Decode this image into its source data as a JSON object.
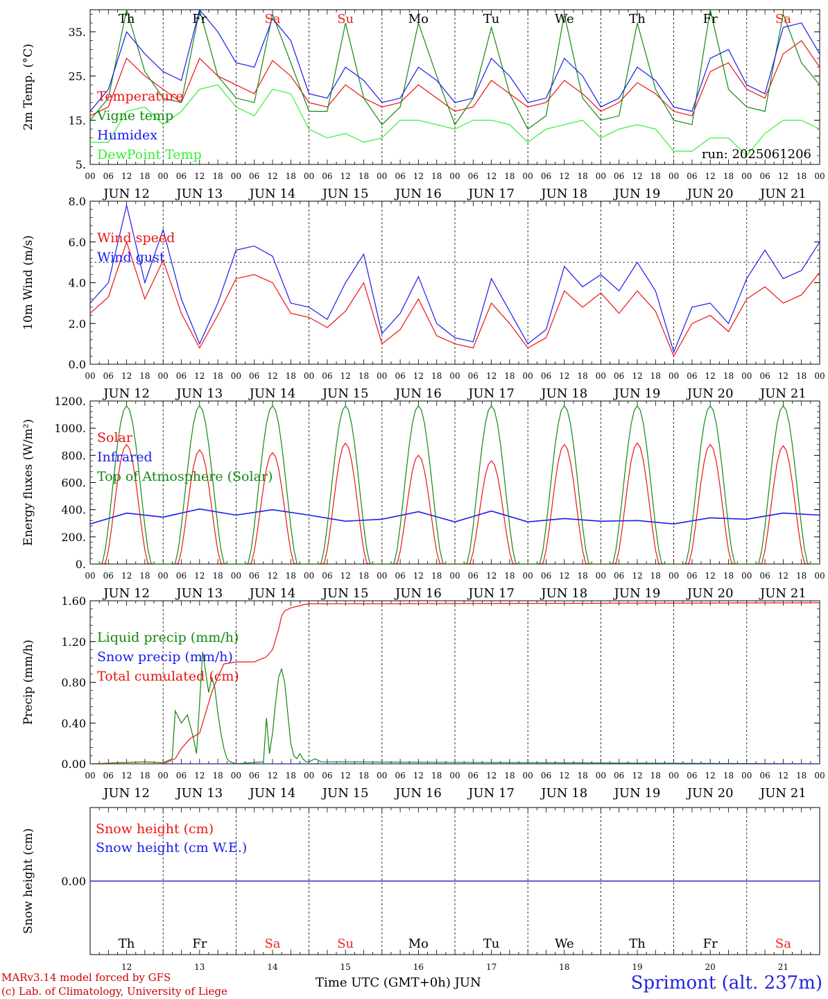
{
  "colors": {
    "red": "#ee1111",
    "green": "#118811",
    "blue": "#1a1aee",
    "lightgreen": "#33ee33",
    "weekend": "#ee2222",
    "weekday": "#000000"
  },
  "days": [
    {
      "abbr": "Th",
      "date": "JUN 12",
      "num": "12",
      "weekend": false
    },
    {
      "abbr": "Fr",
      "date": "JUN 13",
      "num": "13",
      "weekend": false
    },
    {
      "abbr": "Sa",
      "date": "JUN 14",
      "num": "14",
      "weekend": true
    },
    {
      "abbr": "Su",
      "date": "JUN 15",
      "num": "15",
      "weekend": true
    },
    {
      "abbr": "Mo",
      "date": "JUN 16",
      "num": "16",
      "weekend": false
    },
    {
      "abbr": "Tu",
      "date": "JUN 17",
      "num": "17",
      "weekend": false
    },
    {
      "abbr": "We",
      "date": "JUN 18",
      "num": "18",
      "weekend": false
    },
    {
      "abbr": "Th",
      "date": "JUN 19",
      "num": "19",
      "weekend": false
    },
    {
      "abbr": "Fr",
      "date": "JUN 20",
      "num": "20",
      "weekend": false
    },
    {
      "abbr": "Sa",
      "date": "JUN 21",
      "num": "21",
      "weekend": true
    }
  ],
  "hour_ticks": [
    "00",
    "06",
    "12",
    "18"
  ],
  "footer": {
    "model_line": "MARv3.14 model forced by GFS",
    "lab_line": "(c) Lab. of Climatology, University of Liege",
    "xlabel": "Time UTC (GMT+0h) JUN",
    "station": "Sprimont (alt. 237m)"
  },
  "chart_data": [
    {
      "type": "line",
      "ylabel": "2m Temp. (°C)",
      "ylim": [
        5,
        40
      ],
      "yticks": [
        5,
        15,
        25,
        35
      ],
      "ytick_labels": [
        "5.",
        "15.",
        "25.",
        "35."
      ],
      "run_label": "run: 2025061206",
      "xunit": "hours since JUN 12 00 UTC",
      "series": [
        {
          "name": "Temperature",
          "color": "red",
          "x": [
            0,
            6,
            12,
            18,
            24,
            30,
            36,
            42,
            48,
            54,
            60,
            66,
            72,
            78,
            84,
            90,
            96,
            102,
            108,
            114,
            120,
            126,
            132,
            138,
            144,
            150,
            156,
            162,
            168,
            174,
            180,
            186,
            192,
            198,
            204,
            210,
            216,
            222,
            228,
            234,
            240
          ],
          "values": [
            16,
            18,
            29,
            25,
            22,
            19,
            29,
            25,
            23,
            21,
            28.5,
            25,
            19,
            18,
            23,
            20,
            18,
            19,
            23,
            20,
            17,
            18,
            24,
            21,
            18,
            19,
            24,
            21,
            17,
            19,
            23.5,
            21,
            17,
            16,
            26,
            28,
            22,
            20,
            30,
            33,
            27
          ]
        },
        {
          "name": "Vigne temp",
          "color": "green",
          "x": [
            0,
            6,
            12,
            18,
            24,
            30,
            36,
            42,
            48,
            54,
            60,
            66,
            72,
            78,
            84,
            90,
            96,
            102,
            108,
            114,
            120,
            126,
            132,
            138,
            144,
            150,
            156,
            162,
            168,
            174,
            180,
            186,
            192,
            198,
            204,
            210,
            216,
            222,
            228,
            234,
            240
          ],
          "values": [
            15,
            20,
            40,
            26,
            20,
            19,
            40,
            25,
            20,
            19,
            39,
            28,
            17,
            17,
            37,
            20,
            14,
            18,
            37,
            25,
            14,
            20,
            36,
            21,
            13,
            16,
            39,
            20,
            15,
            16,
            37,
            22,
            15,
            14,
            40,
            22,
            18,
            17,
            39,
            28,
            23
          ]
        },
        {
          "name": "Humidex",
          "color": "blue",
          "x": [
            0,
            6,
            12,
            18,
            24,
            30,
            36,
            42,
            48,
            54,
            60,
            66,
            72,
            78,
            84,
            90,
            96,
            102,
            108,
            114,
            120,
            126,
            132,
            138,
            144,
            150,
            156,
            162,
            168,
            174,
            180,
            186,
            192,
            198,
            204,
            210,
            216,
            222,
            228,
            234,
            240
          ],
          "values": [
            17,
            22,
            35,
            30,
            26,
            24,
            40,
            35,
            28,
            27,
            38,
            33,
            21,
            20,
            27,
            24,
            19,
            20,
            27,
            24,
            19,
            20,
            29,
            25,
            19,
            20,
            29,
            25,
            18,
            20,
            27,
            24,
            18,
            17,
            29,
            31,
            23,
            21,
            36,
            37,
            30
          ]
        },
        {
          "name": "DewPoint Temp",
          "color": "lightgreen",
          "x": [
            0,
            6,
            12,
            18,
            24,
            30,
            36,
            42,
            48,
            54,
            60,
            66,
            72,
            78,
            84,
            90,
            96,
            102,
            108,
            114,
            120,
            126,
            132,
            138,
            144,
            150,
            156,
            162,
            168,
            174,
            180,
            186,
            192,
            198,
            204,
            210,
            216,
            222,
            228,
            234,
            240
          ],
          "values": [
            10,
            10,
            17,
            18,
            14,
            17,
            22,
            23,
            18,
            16,
            22,
            21,
            13,
            11,
            12,
            10,
            11,
            15,
            15,
            14,
            13,
            15,
            15,
            14,
            10,
            13,
            14,
            15,
            11,
            13,
            14,
            13,
            8,
            8,
            11,
            11,
            7,
            12,
            15,
            15,
            13
          ]
        }
      ]
    },
    {
      "type": "line",
      "ylabel": "10m Wind (m/s)",
      "ylim": [
        0,
        8
      ],
      "yticks": [
        0,
        2,
        4,
        6,
        8
      ],
      "ytick_labels": [
        "0.0",
        "2.0",
        "4.0",
        "6.0",
        "8.0"
      ],
      "hline": 5,
      "xunit": "hours since JUN 12 00 UTC",
      "series": [
        {
          "name": "Wind speed",
          "color": "red",
          "x": [
            0,
            6,
            12,
            18,
            24,
            30,
            36,
            42,
            48,
            54,
            60,
            66,
            72,
            78,
            84,
            90,
            96,
            102,
            108,
            114,
            120,
            126,
            132,
            138,
            144,
            150,
            156,
            162,
            168,
            174,
            180,
            186,
            192,
            198,
            204,
            210,
            216,
            222,
            228,
            234,
            240
          ],
          "values": [
            2.5,
            3.3,
            6.0,
            3.2,
            5.1,
            2.5,
            0.8,
            2.4,
            4.2,
            4.4,
            4.0,
            2.5,
            2.3,
            1.8,
            2.6,
            4.0,
            1.0,
            1.7,
            3.2,
            1.4,
            1.0,
            0.8,
            3.0,
            2.0,
            0.8,
            1.3,
            3.6,
            2.8,
            3.5,
            2.5,
            3.6,
            2.6,
            0.4,
            2.0,
            2.4,
            1.6,
            3.2,
            3.8,
            3.0,
            3.4,
            4.5
          ]
        },
        {
          "name": "Wind gust",
          "color": "blue",
          "x": [
            0,
            6,
            12,
            18,
            24,
            30,
            36,
            42,
            48,
            54,
            60,
            66,
            72,
            78,
            84,
            90,
            96,
            102,
            108,
            114,
            120,
            126,
            132,
            138,
            144,
            150,
            156,
            162,
            168,
            174,
            180,
            186,
            192,
            198,
            204,
            210,
            216,
            222,
            228,
            234,
            240
          ],
          "values": [
            3.0,
            4.0,
            7.8,
            4.0,
            6.6,
            3.2,
            1.0,
            3.0,
            5.6,
            5.8,
            5.3,
            3.0,
            2.8,
            2.2,
            4.0,
            5.4,
            1.5,
            2.5,
            4.3,
            2.0,
            1.3,
            1.1,
            4.2,
            2.6,
            1.0,
            1.7,
            4.8,
            3.8,
            4.4,
            3.6,
            5.0,
            3.6,
            0.6,
            2.8,
            3.0,
            2.0,
            4.2,
            5.6,
            4.2,
            4.6,
            6.0
          ]
        }
      ]
    },
    {
      "type": "line",
      "ylabel": "Energy fluxes (W/m²)",
      "ylim": [
        0,
        1200
      ],
      "yticks": [
        0,
        200,
        400,
        600,
        800,
        1000,
        1200
      ],
      "ytick_labels": [
        "0.",
        "200.",
        "400.",
        "600.",
        "800.",
        "1000.",
        "1200."
      ],
      "xunit": "hours since JUN 12 00 UTC",
      "series": [
        {
          "name": "Solar",
          "color": "red",
          "peak_hour_utc": 12,
          "daily_peak": [
            880,
            840,
            820,
            890,
            800,
            760,
            880,
            890,
            880,
            870
          ]
        },
        {
          "name": "Infrared",
          "color": "blue",
          "x": [
            0,
            12,
            24,
            36,
            48,
            60,
            72,
            84,
            96,
            108,
            120,
            132,
            144,
            156,
            168,
            180,
            192,
            204,
            216,
            228,
            240
          ],
          "values": [
            295,
            375,
            345,
            405,
            360,
            400,
            360,
            315,
            330,
            385,
            310,
            390,
            310,
            335,
            315,
            320,
            295,
            340,
            330,
            375,
            360
          ]
        },
        {
          "name": "Top of Atmosphere (Solar)",
          "color": "green",
          "peak_hour_utc": 12,
          "daily_peak": [
            1165,
            1165,
            1165,
            1165,
            1165,
            1165,
            1165,
            1165,
            1165,
            1165
          ]
        }
      ]
    },
    {
      "type": "line",
      "ylabel": "Precip (mm/h)",
      "ylim": [
        0,
        1.6
      ],
      "yticks": [
        0,
        0.4,
        0.8,
        1.2,
        1.6
      ],
      "ytick_labels": [
        "0.00",
        "0.40",
        "0.80",
        "1.20",
        "1.60"
      ],
      "xunit": "hours since JUN 12 00 UTC",
      "series": [
        {
          "name": "Liquid precip (mm/h)",
          "color": "green",
          "x": [
            0,
            18,
            24,
            27,
            28,
            30,
            32,
            34,
            35,
            36,
            37,
            38,
            39,
            40,
            41,
            42,
            43,
            44,
            45,
            46,
            47,
            48,
            57,
            58,
            59,
            60,
            61,
            62,
            63,
            64,
            65,
            66,
            67,
            68,
            69,
            70,
            71,
            72,
            74,
            76,
            240
          ],
          "values": [
            0,
            0.02,
            0.01,
            0.05,
            0.52,
            0.4,
            0.48,
            0.25,
            0.1,
            0.6,
            1.1,
            0.9,
            0.7,
            0.85,
            0.75,
            0.5,
            0.3,
            0.15,
            0.05,
            0.02,
            0.01,
            0,
            0.02,
            0.45,
            0.1,
            0.3,
            0.6,
            0.85,
            0.93,
            0.8,
            0.5,
            0.2,
            0.08,
            0.05,
            0.1,
            0.05,
            0.02,
            0.02,
            0.05,
            0.02,
            0
          ]
        },
        {
          "name": "Snow precip (mm/h)",
          "color": "blue",
          "x": [
            0,
            240
          ],
          "values": [
            0,
            0
          ]
        },
        {
          "name": "Total cumulated (cm)",
          "color": "red",
          "x": [
            0,
            24,
            28,
            30,
            33,
            36,
            38,
            40,
            42,
            44,
            48,
            54,
            58,
            60,
            62,
            63,
            64,
            66,
            70,
            72,
            240
          ],
          "values": [
            0,
            0,
            0.05,
            0.15,
            0.25,
            0.3,
            0.5,
            0.7,
            0.85,
            0.98,
            1.0,
            1.0,
            1.05,
            1.12,
            1.32,
            1.45,
            1.5,
            1.53,
            1.56,
            1.57,
            1.58
          ]
        }
      ]
    },
    {
      "type": "line",
      "ylabel": "Snow height (cm)",
      "ylim": [
        -1,
        1
      ],
      "yticks": [
        0
      ],
      "ytick_labels": [
        "0.00"
      ],
      "xunit": "hours since JUN 12 00 UTC",
      "series": [
        {
          "name": "Snow height (cm)",
          "color": "red",
          "x": [
            0,
            240
          ],
          "values": [
            0,
            0
          ]
        },
        {
          "name": "Snow height (cm W.E.)",
          "color": "blue",
          "x": [
            0,
            240
          ],
          "values": [
            0,
            0
          ]
        }
      ]
    }
  ]
}
